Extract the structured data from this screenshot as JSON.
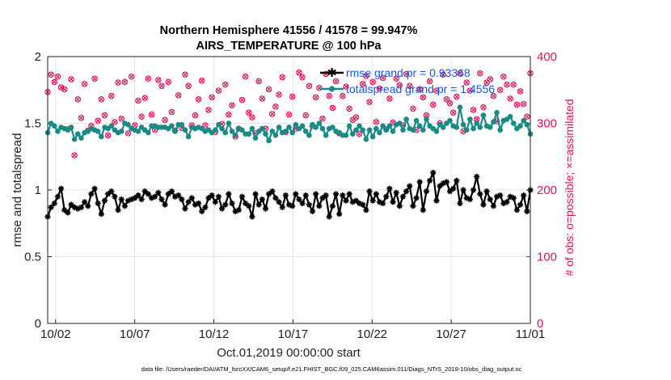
{
  "chart_data": {
    "type": "line",
    "title_line1": "Northern Hemisphere 41556 / 41578 = 99.947%",
    "title_line2": "AIRS_TEMPERATURE @ 100 hPa",
    "xlabel": "Oct.01,2019 00:00:00 start",
    "ylabel_left": "rmse and totalspread",
    "ylabel_right": "# of obs: o=possible; ×=assimilated",
    "footnote": "data file: /Users/raeder/DAI/ATM_forcXX/CAM6_setup/f.e21.FHIST_BGC.f09_025.CAM6assim.011/Diags_NTrS_2019-10/obs_diag_output.nc",
    "x_ticks": [
      {
        "label": "10/02",
        "day": 1
      },
      {
        "label": "10/07",
        "day": 6
      },
      {
        "label": "10/12",
        "day": 11
      },
      {
        "label": "10/17",
        "day": 16
      },
      {
        "label": "10/22",
        "day": 21
      },
      {
        "label": "10/27",
        "day": 26
      },
      {
        "label": "11/01",
        "day": 31
      }
    ],
    "xlim_days": [
      0.5,
      31.0
    ],
    "y_left_ticks": [
      "0",
      "0.5",
      "1",
      "1.5",
      "2"
    ],
    "y_left_lim": [
      0,
      2
    ],
    "y_right_ticks": [
      "0",
      "100",
      "200",
      "300",
      "400"
    ],
    "y_right_lim": [
      0,
      400
    ],
    "grid": true,
    "legend_position": "top-right",
    "colors": {
      "rmse": "#000000",
      "spread": "#1a8a87",
      "obs": "#e0105a",
      "legend_text": "#1a55e0"
    },
    "series": [
      {
        "name": "rmse grand pr = 0.93368",
        "axis": "left",
        "values": [
          0.8,
          0.87,
          0.9,
          0.95,
          1.01,
          0.85,
          0.83,
          0.89,
          0.87,
          0.86,
          0.87,
          0.91,
          0.88,
          0.97,
          1.01,
          0.9,
          0.82,
          0.92,
          0.97,
          0.99,
          0.95,
          0.85,
          0.93,
          0.88,
          0.92,
          0.93,
          0.94,
          0.96,
          0.93,
          0.99,
          0.97,
          0.94,
          0.95,
          0.98,
          0.93,
          0.89,
          0.97,
          0.99,
          0.95,
          0.96,
          0.93,
          0.86,
          0.91,
          0.94,
          0.89,
          0.9,
          0.84,
          0.87,
          0.94,
          0.96,
          0.91,
          0.95,
          0.86,
          0.89,
          0.97,
          0.9,
          0.84,
          0.85,
          0.95,
          0.9,
          0.88,
          0.8,
          0.97,
          0.89,
          0.93,
          0.86,
          0.97,
          0.99,
          0.94,
          0.91,
          0.87,
          0.96,
          0.89,
          0.88,
          0.97,
          0.93,
          0.9,
          0.96,
          0.89,
          0.84,
          0.97,
          0.88,
          0.94,
          0.96,
          0.8,
          0.88,
          0.97,
          0.82,
          0.96,
          0.92,
          0.97,
          0.91,
          0.92,
          0.9,
          0.89,
          0.85,
          0.99,
          0.92,
          0.97,
          0.91,
          0.9,
          0.95,
          1.01,
          0.91,
          0.98,
          0.88,
          0.95,
          0.99,
          1.03,
          0.88,
          0.94,
          1.06,
          0.85,
          0.99,
          1.07,
          1.13,
          0.92,
          1.03,
          1.05,
          1.06,
          0.99,
          1.01,
          1.07,
          0.9,
          1.0,
          0.94,
          0.93,
          1.0,
          1.1,
          0.97,
          0.89,
          0.99,
          0.93,
          0.88,
          0.95,
          0.96,
          0.9,
          0.91,
          0.95,
          0.94,
          0.85,
          0.89,
          0.96,
          0.84,
          1.0
        ]
      },
      {
        "name": "totalspread grand pr = 1.4556",
        "axis": "left",
        "values": [
          1.43,
          1.5,
          1.48,
          1.44,
          1.47,
          1.46,
          1.45,
          1.47,
          1.38,
          1.42,
          1.39,
          1.43,
          1.44,
          1.46,
          1.45,
          1.44,
          1.4,
          1.47,
          1.46,
          1.48,
          1.45,
          1.43,
          1.44,
          1.5,
          1.49,
          1.46,
          1.45,
          1.44,
          1.47,
          1.45,
          1.43,
          1.48,
          1.48,
          1.47,
          1.47,
          1.47,
          1.46,
          1.48,
          1.44,
          1.49,
          1.49,
          1.45,
          1.4,
          1.47,
          1.46,
          1.47,
          1.46,
          1.44,
          1.45,
          1.43,
          1.45,
          1.49,
          1.46,
          1.43,
          1.5,
          1.44,
          1.41,
          1.46,
          1.45,
          1.42,
          1.42,
          1.46,
          1.39,
          1.44,
          1.46,
          1.42,
          1.37,
          1.44,
          1.41,
          1.47,
          1.43,
          1.44,
          1.47,
          1.43,
          1.49,
          1.46,
          1.48,
          1.44,
          1.41,
          1.49,
          1.47,
          1.5,
          1.46,
          1.41,
          1.46,
          1.47,
          1.44,
          1.43,
          1.41,
          1.41,
          1.48,
          1.42,
          1.45,
          1.48,
          1.45,
          1.38,
          1.45,
          1.4,
          1.46,
          1.43,
          1.48,
          1.45,
          1.48,
          1.44,
          1.49,
          1.5,
          1.45,
          1.53,
          1.46,
          1.45,
          1.52,
          1.48,
          1.45,
          1.53,
          1.48,
          1.46,
          1.44,
          1.49,
          1.47,
          1.5,
          1.52,
          1.48,
          1.47,
          1.62,
          1.49,
          1.45,
          1.53,
          1.46,
          1.5,
          1.47,
          1.56,
          1.48,
          1.47,
          1.51,
          1.58,
          1.45,
          1.52,
          1.53,
          1.55,
          1.5,
          1.46,
          1.48,
          1.52,
          1.49,
          1.42
        ]
      },
      {
        "name": "# of obs",
        "axis": "right",
        "values": [
          347,
          373,
          362,
          370,
          354,
          351,
          291,
          366,
          252,
          336,
          308,
          359,
          289,
          296,
          367,
          304,
          336,
          312,
          282,
          341,
          302,
          361,
          307,
          362,
          285,
          370,
          297,
          334,
          310,
          338,
          367,
          313,
          290,
          365,
          356,
          305,
          362,
          317,
          289,
          342,
          293,
          373,
          356,
          297,
          312,
          336,
          364,
          297,
          320,
          339,
          287,
          349,
          299,
          358,
          313,
          327,
          280,
          292,
          335,
          370,
          316,
          309,
          285,
          363,
          337,
          292,
          351,
          314,
          325,
          343,
          369,
          287,
          313,
          340,
          292,
          376,
          369,
          312,
          356,
          296,
          339,
          353,
          307,
          374,
          341,
          323,
          363,
          285,
          341,
          355,
          322,
          305,
          309,
          284,
          359,
          371,
          332,
          362,
          302,
          352,
          368,
          291,
          337,
          301,
          367,
          357,
          297,
          374,
          356,
          322,
          290,
          351,
          339,
          312,
          363,
          328,
          349,
          300,
          373,
          336,
          330,
          316,
          340,
          375,
          288,
          361,
          349,
          320,
          306,
          375,
          324,
          361,
          366,
          341,
          303,
          350,
          370,
          358,
          337,
          358,
          328,
          348,
          329,
          310,
          375
        ]
      }
    ]
  }
}
